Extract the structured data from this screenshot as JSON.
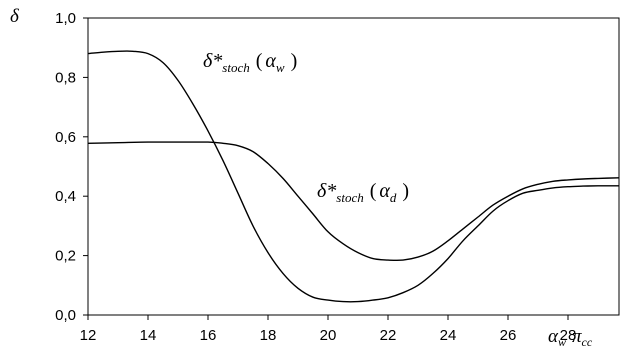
{
  "chart_data": {
    "type": "line",
    "ylabel": "δ",
    "xlabel": {
      "a": "α",
      "a_sub": "w",
      "b": "π",
      "b_sub": "cc"
    },
    "xlim": [
      12,
      29.7
    ],
    "ylim": [
      0.0,
      1.0
    ],
    "xticks": [
      12,
      14,
      16,
      18,
      20,
      22,
      24,
      26,
      28
    ],
    "xtick_labels": [
      "12",
      "14",
      "16",
      "18",
      "20",
      "22",
      "24",
      "26",
      "28"
    ],
    "yticks": [
      0.0,
      0.2,
      0.4,
      0.6,
      0.8,
      1.0
    ],
    "ytick_labels": [
      "0,0",
      "0,2",
      "0,4",
      "0,6",
      "0,8",
      "1,0"
    ],
    "grid": false,
    "series": [
      {
        "label": {
          "main": "δ*",
          "sub": "stoch",
          "arg": "α",
          "arg_sub": "w"
        },
        "x": [
          12,
          12.5,
          13,
          13.5,
          14,
          14.5,
          15,
          15.5,
          16,
          16.5,
          17,
          17.5,
          18,
          18.5,
          19,
          19.5,
          20,
          20.5,
          21,
          21.5,
          22,
          22.5,
          23,
          23.5,
          24,
          24.5,
          25,
          25.5,
          26,
          26.5,
          27,
          27.5,
          28,
          28.5,
          29,
          29.7
        ],
        "y": [
          0.88,
          0.885,
          0.888,
          0.888,
          0.88,
          0.85,
          0.79,
          0.71,
          0.62,
          0.52,
          0.41,
          0.3,
          0.21,
          0.14,
          0.09,
          0.06,
          0.05,
          0.045,
          0.045,
          0.05,
          0.058,
          0.075,
          0.1,
          0.14,
          0.19,
          0.25,
          0.3,
          0.35,
          0.385,
          0.41,
          0.42,
          0.428,
          0.432,
          0.434,
          0.435,
          0.435
        ]
      },
      {
        "label": {
          "main": "δ*",
          "sub": "stoch",
          "arg": "α",
          "arg_sub": "d"
        },
        "x": [
          12,
          13,
          14,
          15,
          16,
          16.5,
          17,
          17.5,
          18,
          18.5,
          19,
          19.5,
          20,
          20.5,
          21,
          21.5,
          22,
          22.5,
          23,
          23.5,
          24,
          24.5,
          25,
          25.5,
          26,
          26.5,
          27,
          27.5,
          28,
          28.5,
          29,
          29.7
        ],
        "y": [
          0.578,
          0.58,
          0.582,
          0.582,
          0.582,
          0.578,
          0.57,
          0.55,
          0.51,
          0.46,
          0.4,
          0.34,
          0.28,
          0.24,
          0.21,
          0.19,
          0.185,
          0.185,
          0.195,
          0.215,
          0.25,
          0.29,
          0.33,
          0.37,
          0.4,
          0.425,
          0.44,
          0.45,
          0.455,
          0.458,
          0.46,
          0.462
        ]
      }
    ]
  }
}
